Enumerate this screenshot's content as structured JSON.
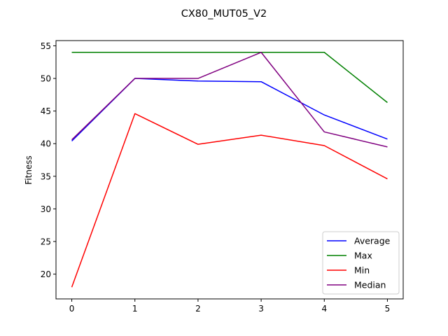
{
  "chart_data": {
    "type": "line",
    "title": "CX80_MUT05_V2",
    "xlabel": "",
    "ylabel": "Fitness",
    "x": [
      0,
      1,
      2,
      3,
      4,
      5
    ],
    "xlim": [
      -0.25,
      5.25
    ],
    "ylim": [
      16.2,
      55.8
    ],
    "xticks": [
      0,
      1,
      2,
      3,
      4,
      5
    ],
    "yticks": [
      20,
      25,
      30,
      35,
      40,
      45,
      50,
      55
    ],
    "grid": false,
    "legend_position": "lower-right",
    "series": [
      {
        "name": "Average",
        "color": "#0000ff",
        "values": [
          40.4,
          50.0,
          49.6,
          49.5,
          44.4,
          40.7
        ]
      },
      {
        "name": "Max",
        "color": "#008000",
        "values": [
          54.0,
          54.0,
          54.0,
          54.0,
          54.0,
          46.3
        ]
      },
      {
        "name": "Min",
        "color": "#ff0000",
        "values": [
          18.0,
          44.6,
          39.9,
          41.3,
          39.7,
          34.6
        ]
      },
      {
        "name": "Median",
        "color": "#800080",
        "values": [
          40.6,
          50.0,
          50.0,
          54.0,
          41.8,
          39.5
        ]
      }
    ]
  }
}
